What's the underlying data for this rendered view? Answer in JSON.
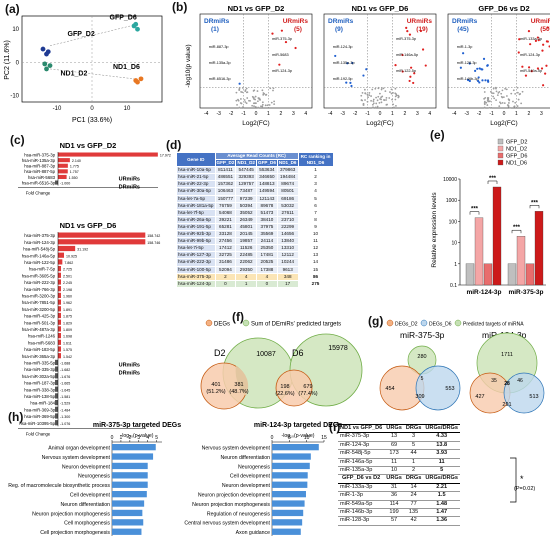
{
  "labels": {
    "a": "(a)",
    "b": "(b)",
    "c": "(c)",
    "d": "(d)",
    "e": "(e)",
    "f": "(f)",
    "g": "(g)",
    "h": "(h)",
    "i": "(i)"
  },
  "pca": {
    "xlabel": "PC1 (33.6%)",
    "ylabel": "PC2 (11.6%)",
    "groups": [
      {
        "name": "GFP_D2",
        "color": "#1f3a93",
        "points": [
          [
            -14,
            4
          ],
          [
            -13,
            2.5
          ],
          [
            -12.5,
            3.2
          ]
        ]
      },
      {
        "name": "GFP_D6",
        "color": "#2ca7a0",
        "points": [
          [
            12,
            11
          ],
          [
            13,
            10
          ],
          [
            12.5,
            11.5
          ]
        ]
      },
      {
        "name": "ND1_D2",
        "color": "#2b8a6e",
        "points": [
          [
            -13,
            -2
          ],
          [
            -12,
            -1
          ],
          [
            -13.5,
            -0.5
          ]
        ]
      },
      {
        "name": "ND1_D6",
        "color": "#e87722",
        "points": [
          [
            13,
            -6
          ],
          [
            14,
            -5
          ],
          [
            12.5,
            -5.5
          ]
        ]
      }
    ],
    "xticks": [
      "-10",
      "0",
      "10"
    ],
    "yticks": [
      "-10",
      "0",
      "10"
    ]
  },
  "volcanos": [
    {
      "title": "ND1 vs GFP_D2",
      "dr": "DRmiRs",
      "dr_n": "(1)",
      "ur": "URmiRs",
      "ur_n": "(5)",
      "annotations": [
        "miR-375-3p",
        "miR-887-3p",
        "miR-5683",
        "miR-135a-3p",
        "miR-124-3p",
        "miR-6516-3p"
      ]
    },
    {
      "title": "ND1 vs GFP_D6",
      "dr": "DRmiRs",
      "dr_n": "(9)",
      "ur": "URmiRs",
      "ur_n": "(19)",
      "annotations": [
        "miR-375-3p",
        "miR-124-3p",
        "miR-146a-5p",
        "miR-135a-3p",
        "miR-122-5p",
        "miR-192-5p"
      ]
    },
    {
      "title": "GFP_D6 vs D2",
      "dr": "DRmiRs",
      "dr_n": "(45)",
      "ur": "URmiRs",
      "ur_n": "(50)",
      "annotations": [
        "miR-133a-3p",
        "miR-1-3p",
        "miR-124-3p",
        "miR-128-3p",
        "miR-549a-5p",
        "miR-146b-3p"
      ]
    }
  ],
  "volcano_axes": {
    "xlabel": "Log2(FC)",
    "ylabel": "-log10(p value)",
    "xticks": [
      "-4",
      "-3",
      "-2",
      "-1",
      "0",
      "1",
      "2",
      "3",
      "4"
    ]
  },
  "bars_top": {
    "title": "ND1 vs GFP_D2",
    "items": [
      {
        "name": "hsa-miR-375-3p",
        "value": 17972,
        "label": "17.972"
      },
      {
        "name": "hsa-miR-135a-3p",
        "value": 2140,
        "label": "2.140"
      },
      {
        "name": "hsa-miR-887-3p",
        "value": 1775,
        "label": "1.775"
      },
      {
        "name": "hsa-miR-887-5p",
        "value": 1757,
        "label": "1.757"
      },
      {
        "name": "hsa-miR-5683",
        "value": 1550,
        "label": "1.550"
      },
      {
        "name": "hsa-miR-6516-3p",
        "value": -1000,
        "label": "-1.000"
      }
    ],
    "ur": "URmiRs",
    "dr": "DRmiRs",
    "axis": "Fold Change"
  },
  "bars_bottom": {
    "title": "ND1 vs GFP_D6",
    "items": [
      {
        "name": "hsa-miR-375-3p",
        "value": 158742,
        "label": "158.742"
      },
      {
        "name": "hsa-miR-124-3p",
        "value": 158746,
        "label": "158.746"
      },
      {
        "name": "hsa-miR-548j-5p",
        "value": 31192,
        "label": "31.192"
      },
      {
        "name": "hsa-miR-146a-5p",
        "value": 10925,
        "label": "10.925"
      },
      {
        "name": "hsa-miR-122-5p",
        "value": 7862,
        "label": "7.862"
      },
      {
        "name": "hsa-miR-7-5p",
        "value": 2725,
        "label": "2.725"
      },
      {
        "name": "hsa-miR-3605-5p",
        "value": 2501,
        "label": "2.501"
      },
      {
        "name": "hsa-miR-222-3p",
        "value": 2245,
        "label": "2.245"
      },
      {
        "name": "hsa-miR-766-3p",
        "value": 2198,
        "label": "2.198"
      },
      {
        "name": "hsa-miR-3200-3p",
        "value": 1960,
        "label": "1.960"
      },
      {
        "name": "hsa-miR-7851-5p",
        "value": 1962,
        "label": "1.962"
      },
      {
        "name": "hsa-miR-3200-5p",
        "value": 1891,
        "label": "1.891"
      },
      {
        "name": "hsa-miR-425-3p",
        "value": 1875,
        "label": "1.875"
      },
      {
        "name": "hsa-miR-501-3p",
        "value": 1829,
        "label": "1.829"
      },
      {
        "name": "hsa-miR-487a-3p",
        "value": 1809,
        "label": "1.809"
      },
      {
        "name": "hsa-miR-1246",
        "value": 1698,
        "label": "1.698"
      },
      {
        "name": "hsa-miR-5683",
        "value": 1611,
        "label": "1.611"
      },
      {
        "name": "hsa-miR-183-5p",
        "value": 1575,
        "label": "1.575"
      },
      {
        "name": "hsa-miR-365a-3p",
        "value": 1542,
        "label": "1.542"
      },
      {
        "name": "hsa-miR-335-5p",
        "value": -1688,
        "label": "-1.688"
      },
      {
        "name": "hsa-miR-335-3p",
        "value": -1682,
        "label": "-1.682"
      },
      {
        "name": "hsa-miR-302a-5p",
        "value": -1676,
        "label": "-1.676"
      },
      {
        "name": "hsa-miR-187-3p",
        "value": -1665,
        "label": "-1.665"
      },
      {
        "name": "hsa-miR-338-3p",
        "value": -1645,
        "label": "-1.645"
      },
      {
        "name": "hsa-miR-138-5p",
        "value": -1581,
        "label": "-1.581"
      },
      {
        "name": "hsa-miR-184",
        "value": -1529,
        "label": "-1.529"
      },
      {
        "name": "hsa-miR-369-3p",
        "value": -1484,
        "label": "-1.484"
      },
      {
        "name": "hsa-miR-369-5p",
        "value": -1300,
        "label": "-1.300"
      },
      {
        "name": "hsa-miR-10395-5p",
        "value": -1076,
        "label": "-1.076"
      }
    ],
    "ur": "URmiRs",
    "dr": "DRmiRs",
    "axis": "Fold Change"
  },
  "rc_table": {
    "header_top": "Average Read Counts (RC)",
    "header_rank": "RC ranking in ND1_D6",
    "cols": [
      "Gene ID",
      "GFP_D2",
      "ND1_D2",
      "GFP_D6",
      "ND1_D6"
    ],
    "rows": [
      [
        "hsa-miR-10a-5p",
        "811411",
        "547445",
        "553634",
        "379863",
        "1"
      ],
      [
        "hsa-miR-21-5p",
        "486551",
        "329393",
        "346650",
        "194484",
        "2"
      ],
      [
        "hsa-miR-22-3p",
        "157362",
        "129757",
        "148813",
        "89674",
        "3"
      ],
      [
        "hsa-miR-30a-5p",
        "106463",
        "73487",
        "149594",
        "80501",
        "4"
      ],
      [
        "hsa-let-7a-5p",
        "150777",
        "97239",
        "121143",
        "69186",
        "5"
      ],
      [
        "hsa-miR-181a-5p",
        "76759",
        "50394",
        "89678",
        "53032",
        "6"
      ],
      [
        "hsa-let-7f-5p",
        "54068",
        "35052",
        "51473",
        "27611",
        "7"
      ],
      [
        "hsa-miR-26a-5p",
        "39221",
        "26349",
        "38410",
        "23710",
        "8"
      ],
      [
        "hsa-miR-191-5p",
        "65281",
        "45801",
        "37975",
        "22299",
        "9"
      ],
      [
        "hsa-miR-92b-3p",
        "33128",
        "20145",
        "35569",
        "14656",
        "10"
      ],
      [
        "hsa-miR-99b-5p",
        "27456",
        "19857",
        "24114",
        "13840",
        "11"
      ],
      [
        "hsa-let-7i-5p",
        "17412",
        "11526",
        "25350",
        "13310",
        "12"
      ],
      [
        "hsa-miR-127-3p",
        "32725",
        "22485",
        "17481",
        "12112",
        "13"
      ],
      [
        "hsa-miR-222-3p",
        "31486",
        "22062",
        "20525",
        "10244",
        "14"
      ],
      [
        "hsa-miR-100-5p",
        "52094",
        "29350",
        "17388",
        "9613",
        "15"
      ],
      [
        "hsa-miR-375-3p",
        "2",
        "4",
        "4",
        "348",
        "86"
      ],
      [
        "hsa-miR-124-3p",
        "0",
        "1",
        "0",
        "17",
        "275"
      ]
    ]
  },
  "expr": {
    "ylabel": "Relative expression levels",
    "yticks": [
      "10000",
      "1000",
      "100",
      "10",
      "1",
      "0.1"
    ],
    "legend": [
      "GFP_D2",
      "ND1_D2",
      "GFP_D6",
      "ND1_D6"
    ],
    "colors": [
      "#bfbfbf",
      "#f4a6a6",
      "#e86d6d",
      "#cc1a1a"
    ],
    "groups": [
      {
        "name": "miR-124-3p",
        "values": [
          1,
          150,
          1,
          4200
        ]
      },
      {
        "name": "miR-375-3p",
        "values": [
          1,
          20,
          1,
          300
        ]
      }
    ],
    "sig": "***"
  },
  "venn_f": {
    "legend": [
      "DEGs",
      "Sum of DEmiRs' predicted targets"
    ],
    "d2": {
      "label": "D2",
      "left": "401",
      "left_pct": "(51.2%)",
      "mid": "381",
      "mid_pct": "(48.7%)",
      "right": "10087"
    },
    "d6": {
      "label": "D6",
      "left": "198",
      "left_pct": "(22.6%)",
      "mid": "679",
      "mid_pct": "(77.4%)",
      "right": "15978"
    }
  },
  "venn_g": {
    "legend": [
      "DEGs_D2",
      "DEGs_D6",
      "Predicted targets of miRNA"
    ],
    "a": {
      "title": "miR-375-3p",
      "top": "280",
      "left": "454",
      "right": "553",
      "center": "309",
      "c1": "",
      "c2": "5",
      "c3": "",
      "tl": "",
      "tr": ""
    },
    "b": {
      "title": "miR-124-3p",
      "top": "1711",
      "left": "427",
      "right": "513",
      "center": "291",
      "c1": "35",
      "c2": "28",
      "c3": "46"
    }
  },
  "go": {
    "axis": "-log₁₀(p-value)",
    "a": {
      "title": "miR-375-3p targeted DEGs",
      "ticks": [
        "0",
        "1",
        "2",
        "3",
        "4",
        "5"
      ],
      "terms": [
        "Animal organ development",
        "Nervous system development",
        "Neuron development",
        "Neurogenesis",
        "Reg. of macromolecule biosynthetic process",
        "Cell development",
        "Neuron differentiation",
        "Neuron projection morphogenesis",
        "Cell morphogenesis",
        "Cell projection morphogenesis"
      ],
      "values": [
        4.9,
        4.6,
        4.0,
        4.0,
        4.0,
        3.9,
        3.6,
        3.4,
        3.5,
        3.3
      ]
    },
    "b": {
      "title": "miR-124-3p targeted DEGs",
      "ticks": [
        "0",
        "5",
        "10",
        "15"
      ],
      "terms": [
        "Nervous system development",
        "Neuron differentiation",
        "Neurogenesis",
        "Cell development",
        "Neuron development",
        "Neuron projection development",
        "Neuron projection morphogenesis",
        "Regulation of neurogenesis",
        "Central nervous system development",
        "Axon guidance"
      ],
      "values": [
        13.5,
        11.2,
        10.9,
        10.3,
        10.2,
        9.8,
        9.4,
        9.0,
        8.7,
        8.3
      ]
    }
  },
  "urg": {
    "h1": [
      "ND1 vs GFP_D6",
      "URGs",
      "DRGs",
      "URGs/DRGs"
    ],
    "r1": [
      [
        "miR-375-3p",
        "13",
        "3",
        "4.33"
      ],
      [
        "miR-124-3p",
        "69",
        "5",
        "13.8"
      ],
      [
        "miR-548j-5p",
        "173",
        "44",
        "3.93"
      ],
      [
        "miR-146a-5p",
        "11",
        "1",
        "11"
      ],
      [
        "miR-135a-3p",
        "10",
        "2",
        "5"
      ]
    ],
    "h2": [
      "GFP_D6 vs D2",
      "URGs",
      "DRGs",
      "URGs/DRGs"
    ],
    "r2": [
      [
        "miR-133a-3p",
        "31",
        "14",
        "2.21"
      ],
      [
        "miR-1-3p",
        "36",
        "24",
        "1.5"
      ],
      [
        "miR-549a-5p",
        "114",
        "77",
        "1.48"
      ],
      [
        "miR-146b-3p",
        "199",
        "135",
        "1.47"
      ],
      [
        "miR-128-3p",
        "57",
        "42",
        "1.36"
      ]
    ],
    "sig": "*",
    "p": "(P=0.02)"
  }
}
